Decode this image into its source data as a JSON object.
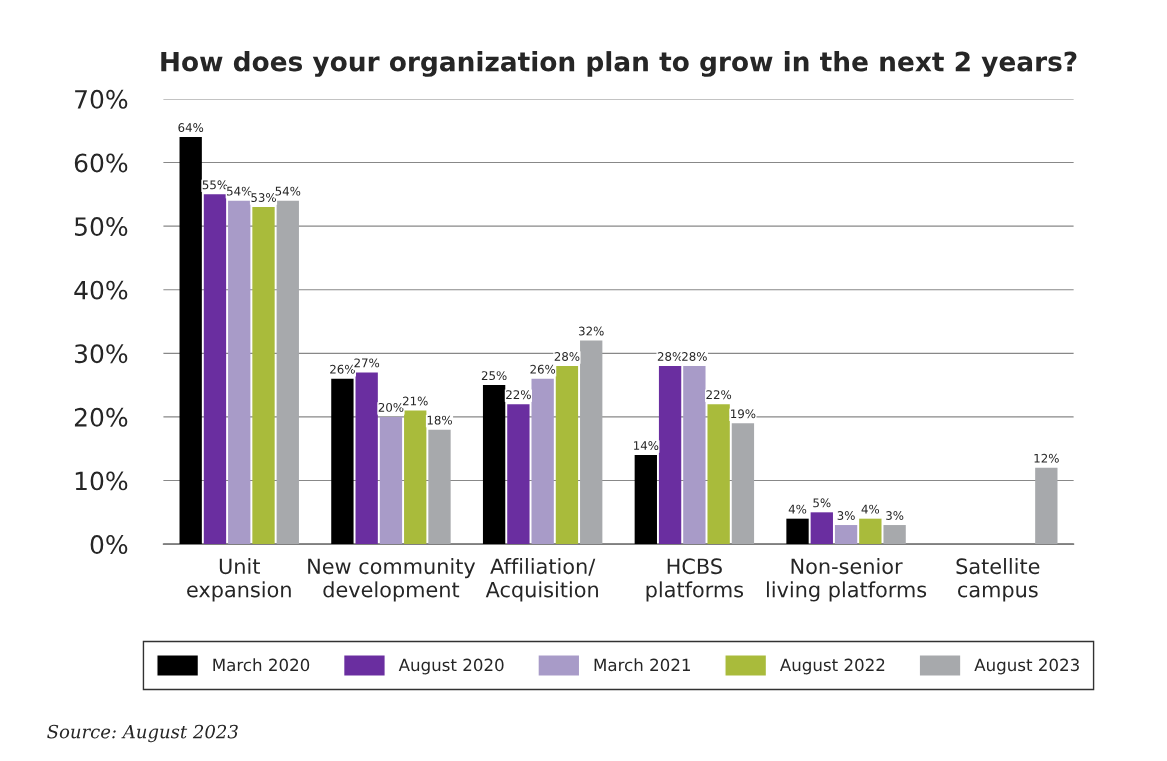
{
  "chart_data": {
    "type": "bar",
    "title": "How does your organization plan to grow in the next 2 years?",
    "categories": [
      "Unit\nexpansion",
      "New community\ndevelopment",
      "Affiliation/\nAcquisition",
      "HCBS\nplatforms",
      "Non-senior\nliving platforms",
      "Satellite\ncampus"
    ],
    "series": [
      {
        "name": "March 2020",
        "color": "#000000",
        "values": [
          64,
          26,
          25,
          14,
          4,
          0
        ],
        "value_labels": [
          "64%",
          "26%",
          "25%",
          "14%",
          "4%",
          null
        ]
      },
      {
        "name": "August 2020",
        "color": "#6a2ea0",
        "values": [
          55,
          27,
          22,
          28,
          5,
          0
        ],
        "value_labels": [
          "55%",
          "27%",
          "22%",
          "28%",
          "5%",
          null
        ]
      },
      {
        "name": "March 2021",
        "color": "#a89bc8",
        "values": [
          54,
          20,
          26,
          28,
          3,
          0
        ],
        "value_labels": [
          "54%",
          "20%",
          "26%",
          "28%",
          "3%",
          null
        ]
      },
      {
        "name": "August 2022",
        "color": "#a9bb3b",
        "values": [
          53,
          21,
          28,
          22,
          4,
          0
        ],
        "value_labels": [
          "53%",
          "21%",
          "28%",
          "22%",
          "4%",
          null
        ]
      },
      {
        "name": "August 2023",
        "color": "#a7a9ac",
        "values": [
          54,
          18,
          32,
          19,
          3,
          12
        ],
        "value_labels": [
          "54%",
          "18%",
          "32%",
          "19%",
          "3%",
          "12%"
        ]
      }
    ],
    "ylim": [
      0,
      70
    ],
    "yticks": [
      {
        "value": 0,
        "label": "0%"
      },
      {
        "value": 10,
        "label": "10%"
      },
      {
        "value": 20,
        "label": "20%"
      },
      {
        "value": 30,
        "label": "30%"
      },
      {
        "value": 40,
        "label": "40%"
      },
      {
        "value": 50,
        "label": "50%"
      },
      {
        "value": 60,
        "label": "60%"
      },
      {
        "value": 70,
        "label": "70%"
      }
    ],
    "grid": "y",
    "legend": "bottom",
    "annotations": [
      "Source: August 2023"
    ]
  }
}
